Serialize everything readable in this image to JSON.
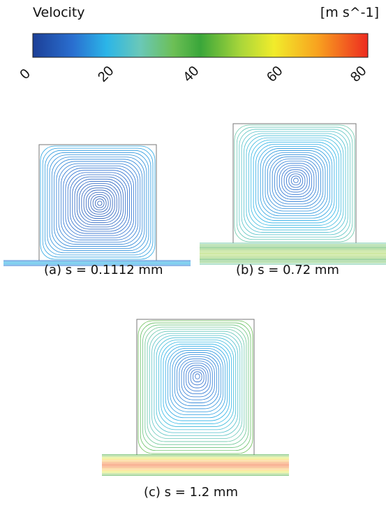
{
  "colorbar": {
    "title": "Velocity",
    "unit": "[m s^-1]",
    "ticks": [
      "0",
      "20",
      "40",
      "60",
      "80"
    ],
    "min": 0,
    "max": 80,
    "colors": [
      "#1c3f97",
      "#2a6fd0",
      "#2bb5e8",
      "#6ac8b8",
      "#6cbf55",
      "#3aa63a",
      "#a9d63a",
      "#f1ec2b",
      "#f8a21f",
      "#ed2b20"
    ]
  },
  "panels": [
    {
      "caption": "(a) s = 0.1112 mm",
      "max_channel_velocity": 18
    },
    {
      "caption": "(b) s = 0.72 mm",
      "max_channel_velocity": 52
    },
    {
      "caption": "(c) s = 1.2 mm",
      "max_channel_velocity": 76
    }
  ]
}
